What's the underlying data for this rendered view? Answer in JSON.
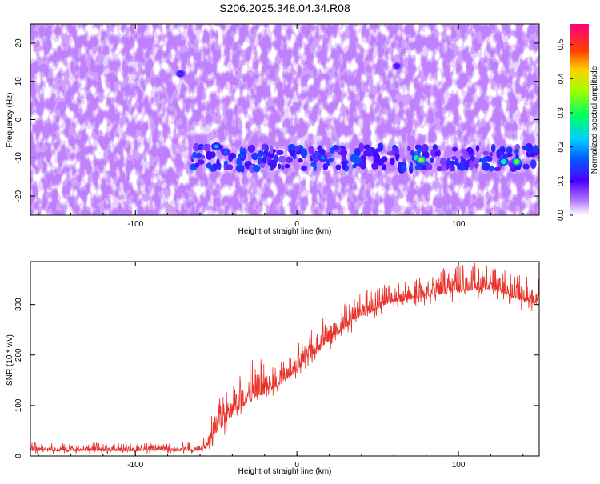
{
  "title": "S206.2025.348.04.34.R08",
  "chart_data": [
    {
      "type": "heatmap",
      "xlabel": "Height of straight line (km)",
      "ylabel": "Frequency (Hz)",
      "xlim": [
        -165,
        150
      ],
      "ylim": [
        -25,
        25
      ],
      "x_ticks": [
        "-100",
        "0",
        "100"
      ],
      "y_ticks": [
        "-20",
        "-10",
        "0",
        "10",
        "20"
      ],
      "colorbar": {
        "label": "Normalized spectral amplitude",
        "range": [
          0,
          0.56
        ],
        "ticks": [
          "0.0",
          "0.1",
          "0.2",
          "0.3",
          "0.4",
          "0.5"
        ]
      },
      "signal_track": {
        "frequency_hz": -10,
        "x_start_km": -65,
        "x_end_km": 150
      },
      "hotspots": [
        {
          "x": -50,
          "y": -7,
          "value": 0.22
        },
        {
          "x": -44,
          "y": -8.5,
          "value": 0.18
        },
        {
          "x": 12,
          "y": -9.5,
          "value": 0.17
        },
        {
          "x": 16,
          "y": -10,
          "value": 0.2
        },
        {
          "x": 74,
          "y": -10,
          "value": 0.32
        },
        {
          "x": 77,
          "y": -10.5,
          "value": 0.42
        },
        {
          "x": 128,
          "y": -11,
          "value": 0.3
        },
        {
          "x": 136,
          "y": -11,
          "value": 0.4
        },
        {
          "x": -72,
          "y": 12,
          "value": 0.15
        },
        {
          "x": 62,
          "y": 14,
          "value": 0.12
        }
      ]
    },
    {
      "type": "line",
      "xlabel": "Height of straight line (km)",
      "ylabel": "SNR (10 * v/v)",
      "xlim": [
        -165,
        150
      ],
      "ylim": [
        0,
        385
      ],
      "x_ticks": [
        "-100",
        "0",
        "100"
      ],
      "y_ticks": [
        "0",
        "100",
        "200",
        "300"
      ],
      "color": "#e8332a",
      "series_envelope": {
        "x": [
          -165,
          -140,
          -120,
          -100,
          -80,
          -62,
          -56,
          -52,
          -47,
          -42,
          -35,
          -25,
          -15,
          -5,
          0,
          5,
          15,
          25,
          35,
          45,
          55,
          70,
          85,
          100,
          115,
          130,
          140,
          150
        ],
        "baseline": [
          10,
          10,
          10,
          10,
          10,
          10,
          15,
          40,
          55,
          72,
          95,
          115,
          132,
          155,
          168,
          185,
          215,
          240,
          265,
          283,
          300,
          310,
          318,
          325,
          330,
          320,
          305,
          300
        ],
        "peak": [
          28,
          26,
          27,
          25,
          27,
          28,
          40,
          105,
          120,
          135,
          165,
          200,
          190,
          210,
          220,
          240,
          270,
          295,
          320,
          335,
          340,
          350,
          370,
          380,
          385,
          370,
          360,
          355
        ]
      }
    }
  ]
}
